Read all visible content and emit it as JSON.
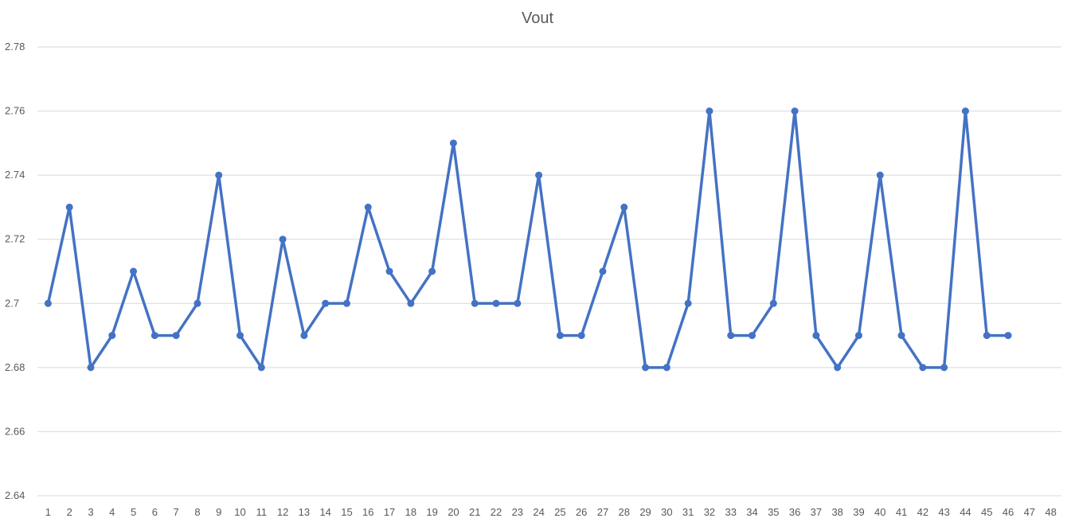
{
  "chart_data": {
    "type": "line",
    "title": "Vout",
    "xlabel": "",
    "ylabel": "",
    "x": [
      1,
      2,
      3,
      4,
      5,
      6,
      7,
      8,
      9,
      10,
      11,
      12,
      13,
      14,
      15,
      16,
      17,
      18,
      19,
      20,
      21,
      22,
      23,
      24,
      25,
      26,
      27,
      28,
      29,
      30,
      31,
      32,
      33,
      34,
      35,
      36,
      37,
      38,
      39,
      40,
      41,
      42,
      43,
      44,
      45,
      46
    ],
    "x_categories": [
      "1",
      "2",
      "3",
      "4",
      "5",
      "6",
      "7",
      "8",
      "9",
      "10",
      "11",
      "12",
      "13",
      "14",
      "15",
      "16",
      "17",
      "18",
      "19",
      "20",
      "21",
      "22",
      "23",
      "24",
      "25",
      "26",
      "27",
      "28",
      "29",
      "30",
      "31",
      "32",
      "33",
      "34",
      "35",
      "36",
      "37",
      "38",
      "39",
      "40",
      "41",
      "42",
      "43",
      "44",
      "45",
      "46",
      "47",
      "48"
    ],
    "series": [
      {
        "values": [
          2.7,
          2.73,
          2.68,
          2.69,
          2.71,
          2.69,
          2.69,
          2.7,
          2.74,
          2.69,
          2.68,
          2.72,
          2.69,
          2.7,
          2.7,
          2.73,
          2.71,
          2.7,
          2.71,
          2.75,
          2.7,
          2.7,
          2.7,
          2.74,
          2.69,
          2.69,
          2.71,
          2.73,
          2.68,
          2.68,
          2.7,
          2.76,
          2.69,
          2.69,
          2.7,
          2.76,
          2.69,
          2.68,
          2.69,
          2.74,
          2.69,
          2.68,
          2.68,
          2.76,
          2.69,
          2.69
        ],
        "color": "#4472c4"
      }
    ],
    "ylim": [
      2.64,
      2.78
    ],
    "y_ticks": [
      "2.64",
      "2.66",
      "2.68",
      "2.7",
      "2.72",
      "2.74",
      "2.76",
      "2.78"
    ],
    "grid": true,
    "gridline_color": "#d9d9d9",
    "legend": "none"
  }
}
